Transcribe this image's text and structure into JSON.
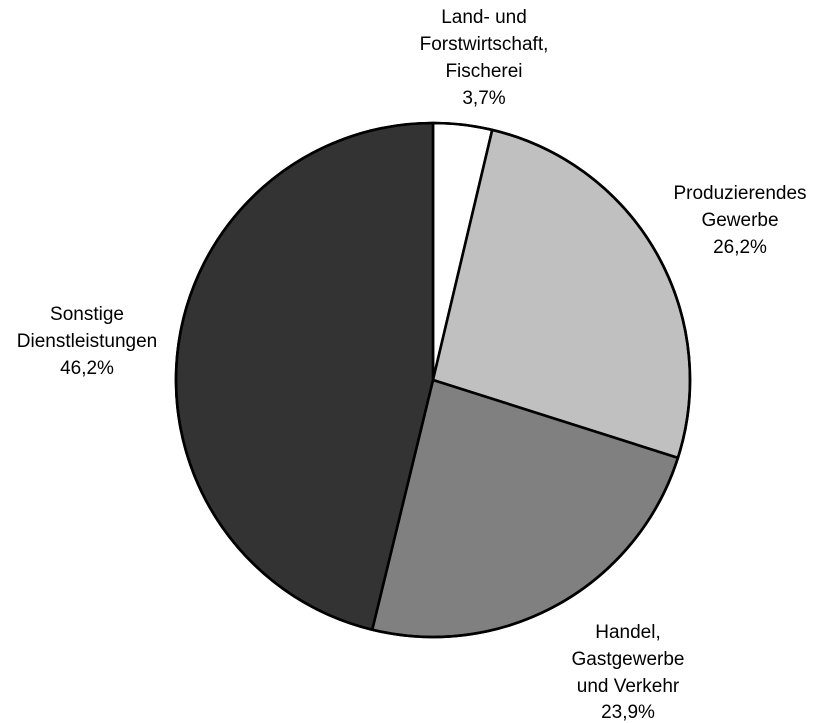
{
  "chart_data": {
    "type": "pie",
    "start": "top",
    "direction": "clockwise",
    "slices": [
      {
        "label_lines": [
          "Land- und",
          "Forstwirtschaft,",
          "Fischerei"
        ],
        "value": 3.7,
        "value_label": "3,7%",
        "color": "#ffffff"
      },
      {
        "label_lines": [
          "Produzierendes",
          "Gewerbe"
        ],
        "value": 26.2,
        "value_label": "26,2%",
        "color": "#c0c0c0"
      },
      {
        "label_lines": [
          "Handel,",
          "Gastgewerbe",
          "und Verkehr"
        ],
        "value": 23.9,
        "value_label": "23,9%",
        "color": "#808080"
      },
      {
        "label_lines": [
          "Sonstige",
          "Dienstleistungen"
        ],
        "value": 46.2,
        "value_label": "46,2%",
        "color": "#333333"
      }
    ]
  }
}
